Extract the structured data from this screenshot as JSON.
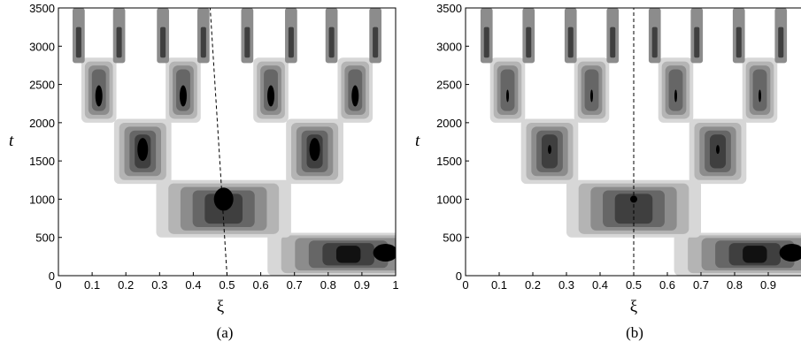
{
  "chart_data": [
    {
      "type": "heatmap",
      "panel_label": "(a)",
      "xlabel": "ξ",
      "ylabel": "t",
      "xlim": [
        0,
        1
      ],
      "ylim": [
        0,
        3500
      ],
      "x_ticks": [
        "0",
        "0.1",
        "0.2",
        "0.3",
        "0.4",
        "0.5",
        "0.6",
        "0.7",
        "0.8",
        "0.9",
        "1"
      ],
      "y_ticks": [
        "0",
        "500",
        "1000",
        "1500",
        "2000",
        "2500",
        "3000",
        "3500"
      ],
      "colormap": "grayscale filled contours, white (low) to black (high)",
      "dashed_line": {
        "from": [
          0.5,
          0
        ],
        "to": [
          0.45,
          3500
        ]
      },
      "features": [
        {
          "t_range": [
            0,
            500
          ],
          "xi_range": [
            0.62,
            1.0
          ],
          "peak_xi": 0.97,
          "peak_t": 300,
          "note": "initial band concentrated near right edge"
        },
        {
          "t_range": [
            500,
            1200
          ],
          "xi_range": [
            0.3,
            0.75
          ],
          "peak_xi": 0.49,
          "peak_t": 1000,
          "note": "single band"
        },
        {
          "t_range": [
            1200,
            2000
          ],
          "branches_xi": [
            0.25,
            0.76
          ],
          "peak_t": 1650,
          "note": "first splitting"
        },
        {
          "t_range": [
            2000,
            2800
          ],
          "branches_xi": [
            0.12,
            0.37,
            0.63,
            0.88
          ],
          "peak_t": 2350,
          "note": "second splitting"
        },
        {
          "t_range": [
            2800,
            3500
          ],
          "branches_xi": [
            0.06,
            0.18,
            0.31,
            0.43,
            0.56,
            0.69,
            0.81,
            0.94
          ],
          "note": "third splitting"
        }
      ]
    },
    {
      "type": "heatmap",
      "panel_label": "(b)",
      "xlabel": "ξ",
      "ylabel": "t",
      "xlim": [
        0,
        1
      ],
      "ylim": [
        0,
        3500
      ],
      "x_ticks": [
        "0",
        "0.1",
        "0.2",
        "0.3",
        "0.4",
        "0.5",
        "0.6",
        "0.7",
        "0.8",
        "0.9"
      ],
      "y_ticks": [
        "0",
        "500",
        "1000",
        "1500",
        "2000",
        "2500",
        "3000",
        "3500"
      ],
      "colormap": "grayscale filled contours, white (low) to black (high)",
      "dashed_line": {
        "from": [
          0.5,
          0
        ],
        "to": [
          0.5,
          3500
        ]
      },
      "features": [
        {
          "t_range": [
            0,
            500
          ],
          "xi_range": [
            0.62,
            1.0
          ],
          "peak_xi": 0.97,
          "peak_t": 300,
          "note": "initial band concentrated near right edge"
        },
        {
          "t_range": [
            500,
            1200
          ],
          "xi_range": [
            0.3,
            0.72
          ],
          "peak_xi": 0.5,
          "peak_t": 1000,
          "note": "single band"
        },
        {
          "t_range": [
            1200,
            2000
          ],
          "branches_xi": [
            0.25,
            0.75
          ],
          "peak_t": 1650,
          "note": "first splitting"
        },
        {
          "t_range": [
            2000,
            2800
          ],
          "branches_xi": [
            0.125,
            0.375,
            0.625,
            0.875
          ],
          "peak_t": 2350,
          "note": "second splitting"
        },
        {
          "t_range": [
            2800,
            3500
          ],
          "branches_xi": [
            0.0625,
            0.1875,
            0.3125,
            0.4375,
            0.5625,
            0.6875,
            0.8125,
            0.9375
          ],
          "note": "third splitting"
        }
      ]
    }
  ]
}
